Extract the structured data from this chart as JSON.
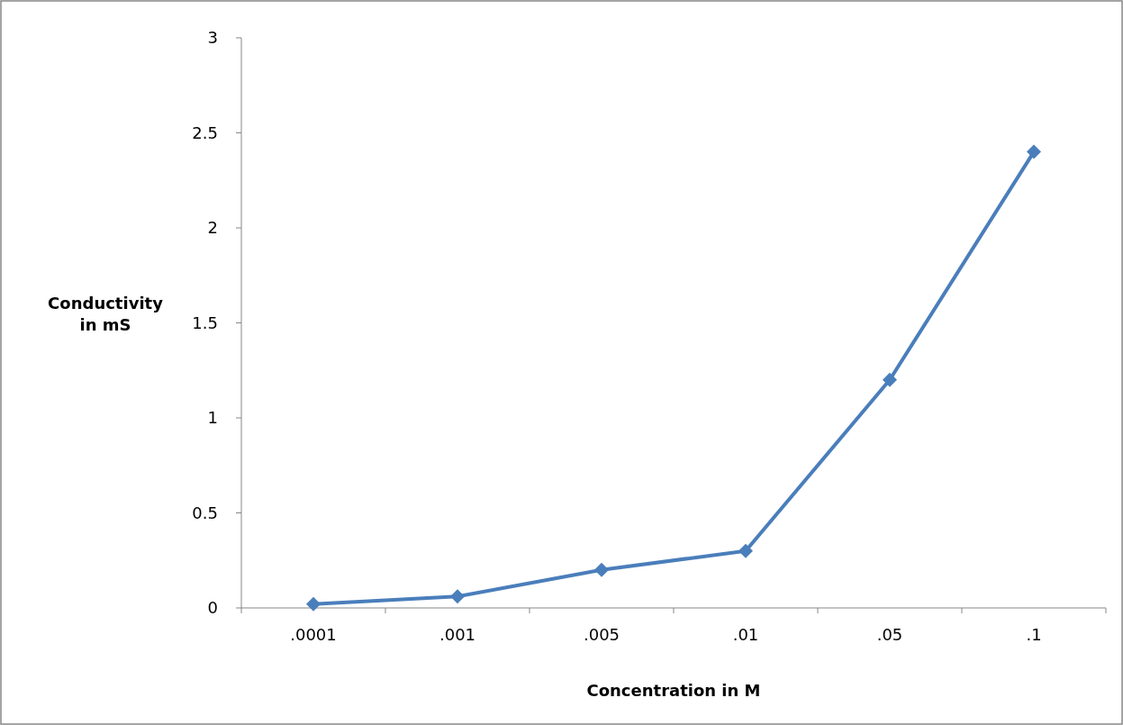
{
  "chart_data": {
    "type": "line",
    "xlabel": "Concentration in M",
    "ylabel": "Conductivity in mS",
    "categories": [
      ".0001",
      ".001",
      ".005",
      ".01",
      ".05",
      ".1"
    ],
    "series": [
      {
        "color": "#4a7ebb",
        "values": [
          0.02,
          0.06,
          0.2,
          0.3,
          1.2,
          2.4
        ]
      }
    ],
    "ylim": [
      0,
      3
    ],
    "yticks": [
      0,
      0.5,
      1,
      1.5,
      2,
      2.5,
      3
    ],
    "marker": "diamond",
    "line_style": "solid",
    "grid": false
  }
}
